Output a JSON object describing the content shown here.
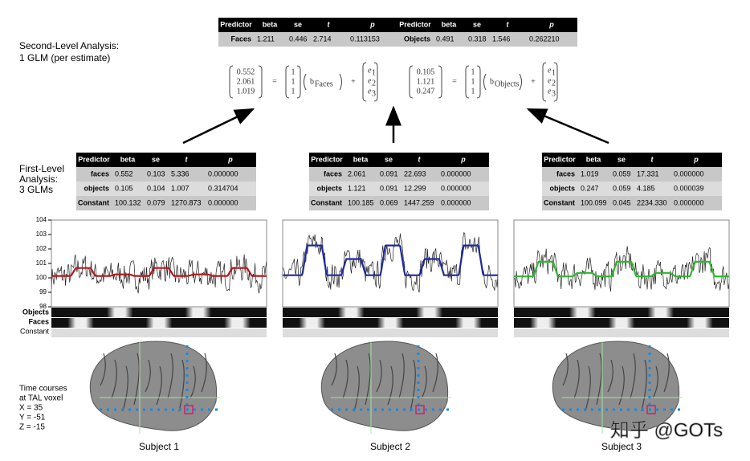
{
  "second_level": {
    "label": [
      "Second-Level Analysis:",
      "1 GLM (per estimate)"
    ],
    "tables": [
      {
        "header": [
          "Predictor",
          "beta",
          "se",
          "t",
          "p"
        ],
        "rows": [
          [
            "Faces",
            "1.211",
            "0.446",
            "2.714",
            "0.113153"
          ]
        ],
        "equation": {
          "y": [
            "0.552",
            "2.061",
            "1.019"
          ],
          "x": [
            "1",
            "1",
            "1"
          ],
          "equals": "=",
          "plus": "+",
          "b": "b",
          "b_sub": "Faces",
          "e": [
            "e",
            "e",
            "e"
          ],
          "e_sub": [
            "1",
            "2",
            "3"
          ]
        }
      },
      {
        "header": [
          "Predictor",
          "beta",
          "se",
          "t",
          "p"
        ],
        "rows": [
          [
            "Objects",
            "0.491",
            "0.318",
            "1.546",
            "0.262210"
          ]
        ],
        "equation": {
          "y": [
            "0.105",
            "1.121",
            "0.247"
          ],
          "x": [
            "1",
            "1",
            "1"
          ],
          "equals": "=",
          "plus": "+",
          "b": "b",
          "b_sub": "Objects",
          "e": [
            "e",
            "e",
            "e"
          ],
          "e_sub": [
            "1",
            "2",
            "3"
          ]
        }
      }
    ]
  },
  "first_level": {
    "label": [
      "First-Level",
      "Analysis:",
      "3 GLMs"
    ],
    "yticks": [
      104,
      103,
      102,
      101,
      100,
      99,
      98
    ],
    "design_labels": [
      "Objects",
      "Faces",
      "Constant"
    ],
    "subjects": [
      {
        "name": "Subject 1",
        "color": "#b3191c",
        "table": {
          "header": [
            "Predictor",
            "beta",
            "se",
            "t",
            "p"
          ],
          "rows": [
            [
              "faces",
              "0.552",
              "0.103",
              "5.336",
              "0.000000"
            ],
            [
              "objects",
              "0.105",
              "0.104",
              "1.007",
              "0.314704"
            ],
            [
              "Constant",
              "100.132",
              "0.079",
              "1270.873",
              "0.000000"
            ]
          ]
        }
      },
      {
        "name": "Subject 2",
        "color": "#1c2a9c",
        "table": {
          "header": [
            "Predictor",
            "beta",
            "se",
            "t",
            "p"
          ],
          "rows": [
            [
              "faces",
              "2.061",
              "0.091",
              "22.693",
              "0.000000"
            ],
            [
              "objects",
              "1.121",
              "0.091",
              "12.299",
              "0.000000"
            ],
            [
              "Constant",
              "100.185",
              "0.069",
              "1447.259",
              "0.000000"
            ]
          ]
        }
      },
      {
        "name": "Subject 3",
        "color": "#2fb52f",
        "table": {
          "header": [
            "Predictor",
            "beta",
            "se",
            "t",
            "p"
          ],
          "rows": [
            [
              "faces",
              "1.019",
              "0.059",
              "17.331",
              "0.000000"
            ],
            [
              "objects",
              "0.247",
              "0.059",
              "4.185",
              "0.000039"
            ],
            [
              "Constant",
              "100.099",
              "0.045",
              "2234.330",
              "0.000000"
            ]
          ]
        }
      }
    ]
  },
  "voxel_label": [
    "Time courses",
    "at TAL voxel",
    "X = 35",
    "Y = -51",
    "Z = -15"
  ],
  "watermark": "知乎 @GOTs"
}
